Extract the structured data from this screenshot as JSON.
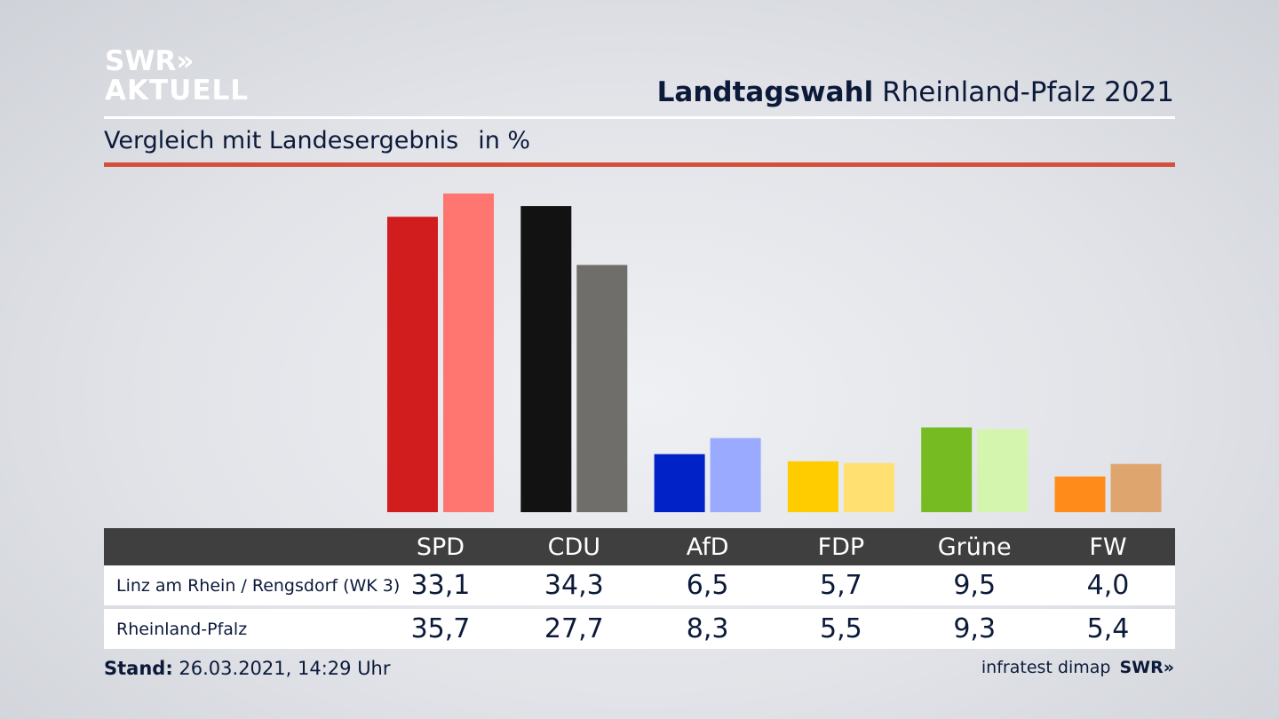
{
  "logo": {
    "line1": "SWR",
    "chevrons": "»",
    "line2": "AKTUELL"
  },
  "header": {
    "title_bold": "Landtagswahl",
    "title_rest": "Rheinland-Pfalz 2021",
    "subtitle": "Vergleich mit Landesergebnis",
    "unit": "in %"
  },
  "chart_data": {
    "type": "bar",
    "categories": [
      "SPD",
      "CDU",
      "AfD",
      "FDP",
      "Grüne",
      "FW"
    ],
    "series": [
      {
        "name": "Linz am Rhein / Rengsdorf (WK 3)",
        "values": [
          33.1,
          34.3,
          6.5,
          5.7,
          9.5,
          4.0
        ],
        "value_labels": [
          "33,1",
          "34,3",
          "6,5",
          "5,7",
          "9,5",
          "4,0"
        ]
      },
      {
        "name": "Rheinland-Pfalz",
        "values": [
          35.7,
          27.7,
          8.3,
          5.5,
          9.3,
          5.4
        ],
        "value_labels": [
          "35,7",
          "27,7",
          "8,3",
          "5,5",
          "9,3",
          "5,4"
        ]
      }
    ],
    "colors": {
      "series1": [
        "#d21d1f",
        "#121212",
        "#0022c7",
        "#ffcc00",
        "#77bb22",
        "#ff8c1a"
      ],
      "series2": [
        "#ff7570",
        "#6f6e6b",
        "#9aaaff",
        "#ffe070",
        "#d4f5ae",
        "#dea56e"
      ]
    },
    "ylim": [
      0,
      36
    ]
  },
  "footer": {
    "stand_label": "Stand:",
    "stand_value": "26.03.2021, 14:29 Uhr",
    "source": "infratest dimap",
    "brand": "SWR»"
  },
  "colors": {
    "accent_red": "#d4503a",
    "text_navy": "#0c1a3a",
    "table_header": "#3f3f3f"
  }
}
